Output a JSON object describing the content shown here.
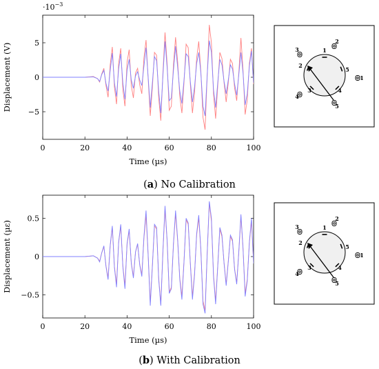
{
  "chart_data": [
    {
      "type": "line",
      "caption_letter": "a",
      "caption_text": "No Calibration",
      "xlabel": "Time (µs)",
      "ylabel": "Displacement (V)",
      "y_exponent_label": "·10",
      "y_exponent_power": "−3",
      "xlim": [
        0,
        100
      ],
      "ylim": [
        -9,
        9
      ],
      "xticks": [
        0,
        20,
        40,
        60,
        80,
        100
      ],
      "yticks": [
        -5,
        0,
        5
      ],
      "ytick_labels": [
        "−5",
        "0",
        "5"
      ],
      "series": [
        {
          "color": "#ff7f7f",
          "x": [
            0,
            20,
            24,
            26,
            27,
            28,
            29,
            30,
            31,
            32,
            33,
            34,
            35,
            36,
            37,
            38,
            39,
            40,
            41,
            42,
            43,
            44,
            45,
            46,
            47,
            48,
            49,
            50,
            51,
            52,
            53,
            54,
            55,
            56,
            57,
            58,
            59,
            60,
            61,
            62,
            63,
            64,
            65,
            66,
            67,
            68,
            69,
            70,
            71,
            72,
            73,
            74,
            75,
            76,
            77,
            78,
            79,
            80,
            81,
            82,
            83,
            84,
            85,
            86,
            87,
            88,
            89,
            90,
            91,
            92,
            93,
            94,
            95,
            96,
            97,
            98,
            99,
            100
          ],
          "y": [
            0,
            0,
            0.1,
            -0.2,
            -0.7,
            0.5,
            1.3,
            -1.2,
            -2.9,
            1.8,
            4.4,
            -1.4,
            -3.9,
            2.0,
            4.2,
            -1.8,
            -4.2,
            2.2,
            4.0,
            -1.2,
            -3.0,
            0.6,
            1.3,
            -1.1,
            -2.4,
            2.8,
            5.4,
            -0.2,
            -5.6,
            -1.5,
            3.6,
            3.2,
            -3.0,
            -6.3,
            0.6,
            6.5,
            2.0,
            -4.8,
            -4.2,
            1.8,
            5.8,
            2.2,
            -2.8,
            -5.2,
            -0.8,
            4.8,
            4.3,
            -1.0,
            -5.2,
            -2.2,
            2.8,
            5.2,
            0.8,
            -5.8,
            -7.6,
            0.2,
            7.6,
            5.0,
            -2.4,
            -6.0,
            -1.3,
            3.6,
            2.7,
            -0.8,
            -3.6,
            -0.8,
            2.6,
            2.0,
            -1.6,
            -3.4,
            0.7,
            5.7,
            1.0,
            -5.4,
            -3.3,
            2.0,
            4.2,
            -1.0
          ]
        },
        {
          "color": "#7f7fff",
          "x": [
            0,
            20,
            24,
            26,
            27,
            28,
            29,
            30,
            31,
            32,
            33,
            34,
            35,
            36,
            37,
            38,
            39,
            40,
            41,
            42,
            43,
            44,
            45,
            46,
            47,
            48,
            49,
            50,
            51,
            52,
            53,
            54,
            55,
            56,
            57,
            58,
            59,
            60,
            61,
            62,
            63,
            64,
            65,
            66,
            67,
            68,
            69,
            70,
            71,
            72,
            73,
            74,
            75,
            76,
            77,
            78,
            79,
            80,
            81,
            82,
            83,
            84,
            85,
            86,
            87,
            88,
            89,
            90,
            91,
            92,
            93,
            94,
            95,
            96,
            97,
            98,
            99,
            100
          ],
          "y": [
            0,
            0,
            0.05,
            -0.2,
            -0.6,
            0.4,
            1.0,
            -0.9,
            -2.0,
            1.0,
            3.5,
            -0.8,
            -2.8,
            1.2,
            3.4,
            -0.8,
            -3.2,
            1.0,
            2.6,
            -0.4,
            -1.6,
            0.2,
            0.8,
            -0.4,
            -1.2,
            1.6,
            4.3,
            0.0,
            -4.4,
            -0.8,
            3.0,
            2.4,
            -2.0,
            -5.2,
            0.2,
            5.2,
            1.4,
            -3.4,
            -3.0,
            1.0,
            4.5,
            1.4,
            -2.0,
            -3.8,
            -0.4,
            3.4,
            3.0,
            -0.6,
            -3.6,
            -1.4,
            2.0,
            3.6,
            0.6,
            -4.2,
            -5.6,
            0.3,
            5.3,
            3.6,
            -1.8,
            -4.4,
            -0.8,
            2.6,
            1.8,
            -0.6,
            -2.4,
            -0.4,
            1.8,
            1.2,
            -1.0,
            -2.6,
            0.4,
            3.6,
            0.6,
            -4.0,
            -2.4,
            1.6,
            3.8,
            -0.8
          ]
        }
      ],
      "diagram": {
        "sensor_labels": [
          "1",
          "2",
          "3",
          "4",
          "5"
        ],
        "inner_marker_labels": [
          "1",
          "2",
          "3",
          "4",
          "5"
        ]
      }
    },
    {
      "type": "line",
      "caption_letter": "b",
      "caption_text": "With Calibration",
      "xlabel": "Time (µs)",
      "ylabel": "Displacement (µε)",
      "xlim": [
        0,
        100
      ],
      "ylim": [
        -0.8,
        0.8
      ],
      "xticks": [
        0,
        20,
        40,
        60,
        80,
        100
      ],
      "yticks": [
        -0.5,
        0,
        0.5
      ],
      "ytick_labels": [
        "−0.5",
        "0",
        "0.5"
      ],
      "series": [
        {
          "color": "#ff7f7f",
          "x": [
            0,
            20,
            24,
            26,
            27,
            28,
            29,
            30,
            31,
            32,
            33,
            34,
            35,
            36,
            37,
            38,
            39,
            40,
            41,
            42,
            43,
            44,
            45,
            46,
            47,
            48,
            49,
            50,
            51,
            52,
            53,
            54,
            55,
            56,
            57,
            58,
            59,
            60,
            61,
            62,
            63,
            64,
            65,
            66,
            67,
            68,
            69,
            70,
            71,
            72,
            73,
            74,
            75,
            76,
            77,
            78,
            79,
            80,
            81,
            82,
            83,
            84,
            85,
            86,
            87,
            88,
            89,
            90,
            91,
            92,
            93,
            94,
            95,
            96,
            97,
            98,
            99,
            100
          ],
          "y": [
            0,
            0,
            0.01,
            -0.02,
            -0.06,
            0.05,
            0.13,
            -0.12,
            -0.28,
            0.14,
            0.38,
            -0.13,
            -0.36,
            0.18,
            0.4,
            -0.12,
            -0.38,
            0.16,
            0.34,
            -0.08,
            -0.26,
            0.06,
            0.16,
            -0.1,
            -0.24,
            0.24,
            0.54,
            0.02,
            -0.6,
            -0.12,
            0.4,
            0.36,
            -0.28,
            -0.62,
            0.06,
            0.62,
            0.2,
            -0.46,
            -0.4,
            0.16,
            0.56,
            0.2,
            -0.28,
            -0.52,
            -0.06,
            0.48,
            0.42,
            -0.08,
            -0.52,
            -0.22,
            0.28,
            0.5,
            0.08,
            -0.58,
            -0.7,
            0.04,
            0.7,
            0.46,
            -0.24,
            -0.58,
            -0.12,
            0.36,
            0.26,
            -0.08,
            -0.36,
            -0.06,
            0.26,
            0.2,
            -0.16,
            -0.34,
            0.06,
            0.52,
            0.1,
            -0.48,
            -0.3,
            0.18,
            0.46,
            -0.08
          ]
        },
        {
          "color": "#7f7fff",
          "x": [
            0,
            20,
            24,
            26,
            27,
            28,
            29,
            30,
            31,
            32,
            33,
            34,
            35,
            36,
            37,
            38,
            39,
            40,
            41,
            42,
            43,
            44,
            45,
            46,
            47,
            48,
            49,
            50,
            51,
            52,
            53,
            54,
            55,
            56,
            57,
            58,
            59,
            60,
            61,
            62,
            63,
            64,
            65,
            66,
            67,
            68,
            69,
            70,
            71,
            72,
            73,
            74,
            75,
            76,
            77,
            78,
            79,
            80,
            81,
            82,
            83,
            84,
            85,
            86,
            87,
            88,
            89,
            90,
            91,
            92,
            93,
            94,
            95,
            96,
            97,
            98,
            99,
            100
          ],
          "y": [
            0,
            0,
            0.01,
            -0.02,
            -0.07,
            0.05,
            0.14,
            -0.13,
            -0.3,
            0.15,
            0.4,
            -0.14,
            -0.4,
            0.19,
            0.42,
            -0.13,
            -0.42,
            0.17,
            0.36,
            -0.09,
            -0.28,
            0.06,
            0.17,
            -0.11,
            -0.26,
            0.26,
            0.6,
            0.02,
            -0.64,
            -0.13,
            0.42,
            0.38,
            -0.3,
            -0.64,
            0.07,
            0.66,
            0.21,
            -0.48,
            -0.42,
            0.17,
            0.6,
            0.22,
            -0.3,
            -0.56,
            -0.07,
            0.5,
            0.44,
            -0.09,
            -0.56,
            -0.24,
            0.3,
            0.54,
            0.09,
            -0.62,
            -0.74,
            0.04,
            0.72,
            0.5,
            -0.26,
            -0.62,
            -0.13,
            0.38,
            0.28,
            -0.09,
            -0.38,
            -0.07,
            0.28,
            0.22,
            -0.17,
            -0.36,
            0.07,
            0.55,
            0.11,
            -0.52,
            -0.32,
            0.19,
            0.5,
            -0.09
          ]
        }
      ],
      "diagram": {
        "sensor_labels": [
          "1",
          "2",
          "3",
          "4",
          "5"
        ],
        "inner_marker_labels": [
          "1",
          "2",
          "3",
          "4",
          "5"
        ]
      }
    }
  ]
}
